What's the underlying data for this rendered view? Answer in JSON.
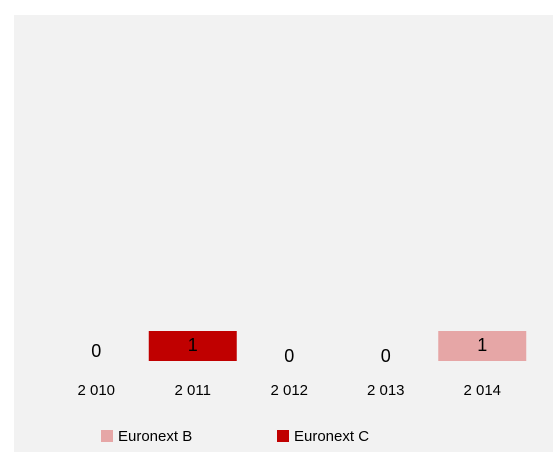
{
  "chart_data": {
    "type": "stacked_bar",
    "categories": [
      "2 010",
      "2 011",
      "2 012",
      "2 013",
      "2 014"
    ],
    "series": [
      {
        "name": "Euronext B",
        "color": "#e6a6a6",
        "values": [
          null,
          null,
          0,
          0,
          1
        ]
      },
      {
        "name": "Euronext C",
        "color": "#c00000",
        "values": [
          0,
          1,
          null,
          null,
          null
        ]
      }
    ]
  }
}
